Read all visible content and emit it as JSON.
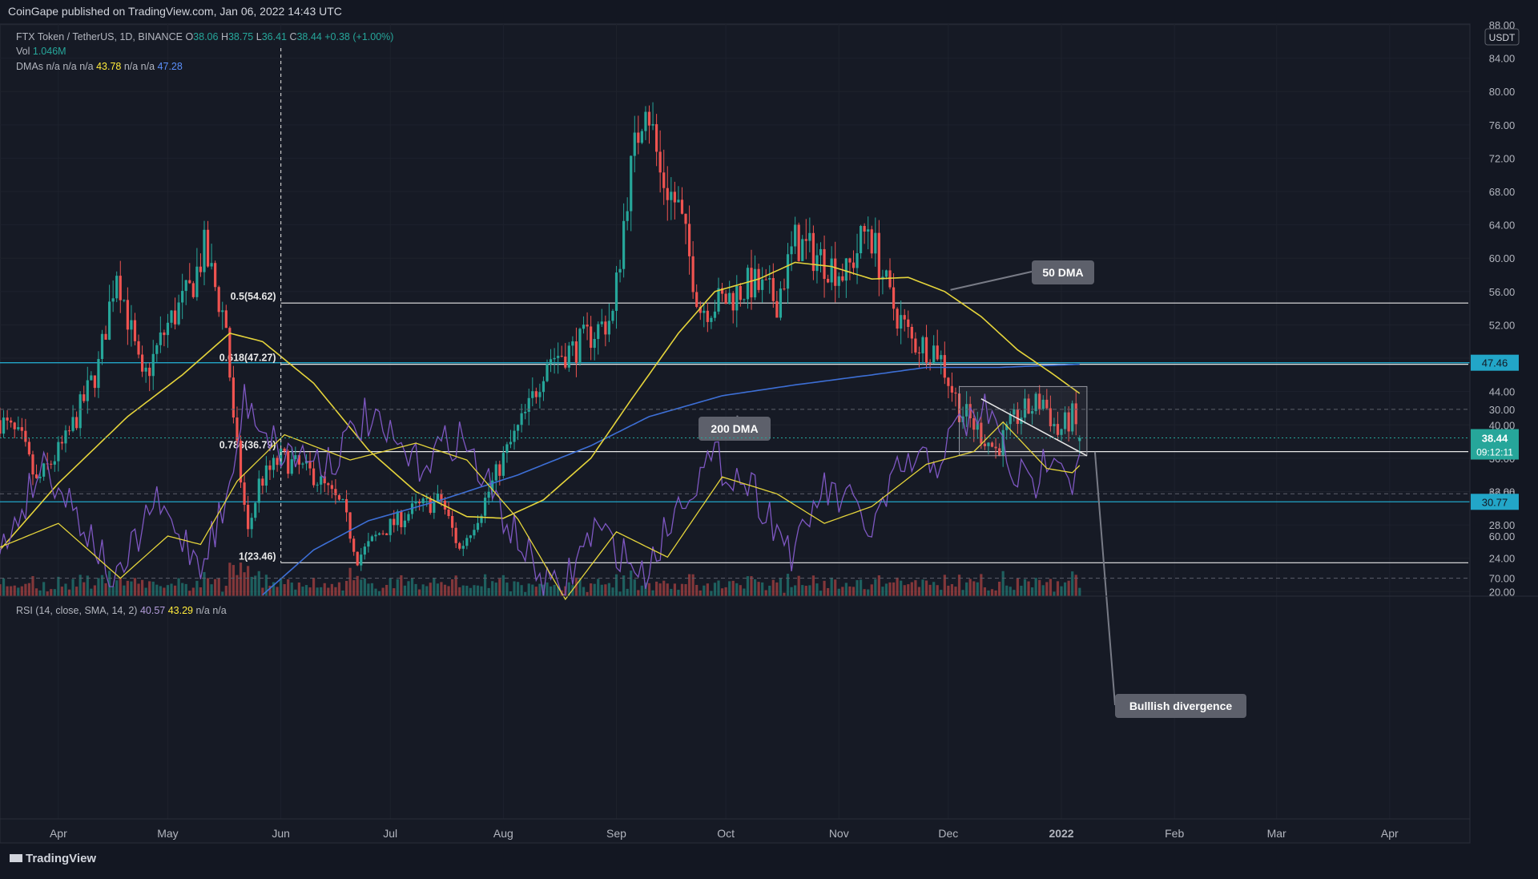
{
  "header": {
    "published": "CoinGape published on TradingView.com, Jan 06, 2022 14:43 UTC",
    "logo_text": "TradingView"
  },
  "legend": {
    "symbol": "FTX Token / TetherUS, 1D, BINANCE",
    "o_label": "O",
    "o": "38.06",
    "h_label": "H",
    "h": "38.75",
    "l_label": "L",
    "l": "36.41",
    "c_label": "C",
    "c": "38.44",
    "change": "+0.38 (+1.00%)",
    "vol_label": "Vol",
    "vol": "1.046M",
    "dma_label": "DMAs n/a n/a n/a",
    "dma1": "43.78",
    "dma_mid": "n/a n/a",
    "dma2": "47.28",
    "rsi_label": "RSI (14, close, SMA, 14, 2)",
    "rsi": "40.57",
    "rsi_ma": "43.29",
    "rsi_rest": "n/a n/a"
  },
  "colors": {
    "bg": "#131722",
    "up": "#26a69a",
    "down": "#ef5350",
    "dma50": "#e5d43b",
    "dma200": "#3d6fd6",
    "rsi": "#7e57c2",
    "rsi_ma": "#e5d43b",
    "accent": "#26a69a",
    "hline": "#22a6c8",
    "grid": "#1e222d"
  },
  "chart_data": [
    {
      "type": "candlestick",
      "currency": "USDT",
      "yticks": [
        20,
        24,
        28,
        32,
        36,
        40,
        44,
        48,
        52,
        56,
        60,
        64,
        68,
        72,
        76,
        80,
        84,
        88
      ],
      "ylim": [
        19.5,
        88
      ],
      "xticks": [
        "Apr",
        "May",
        "Jun",
        "Jul",
        "Aug",
        "Sep",
        "Oct",
        "Nov",
        "Dec",
        "2022",
        "Feb",
        "Mar",
        "Apr"
      ],
      "price_path": [
        [
          "2021-03-15",
          41
        ],
        [
          "2021-03-22",
          38
        ],
        [
          "2021-03-26",
          33
        ],
        [
          "2021-04-03",
          38
        ],
        [
          "2021-04-12",
          47
        ],
        [
          "2021-04-17",
          59
        ],
        [
          "2021-04-24",
          45
        ],
        [
          "2021-05-01",
          52
        ],
        [
          "2021-05-07",
          56
        ],
        [
          "2021-05-11",
          61
        ],
        [
          "2021-05-17",
          52
        ],
        [
          "2021-05-19",
          40
        ],
        [
          "2021-05-23",
          27
        ],
        [
          "2021-05-26",
          33
        ],
        [
          "2021-06-01",
          36
        ],
        [
          "2021-06-10",
          34
        ],
        [
          "2021-06-18",
          30
        ],
        [
          "2021-06-22",
          24
        ],
        [
          "2021-06-28",
          27
        ],
        [
          "2021-07-08",
          30
        ],
        [
          "2021-07-15",
          31
        ],
        [
          "2021-07-20",
          25
        ],
        [
          "2021-07-26",
          30
        ],
        [
          "2021-08-01",
          36
        ],
        [
          "2021-08-08",
          42
        ],
        [
          "2021-08-13",
          48
        ],
        [
          "2021-08-20",
          49
        ],
        [
          "2021-08-31",
          53
        ],
        [
          "2021-09-04",
          68
        ],
        [
          "2021-09-09",
          80
        ],
        [
          "2021-09-13",
          70
        ],
        [
          "2021-09-18",
          66
        ],
        [
          "2021-09-24",
          54
        ],
        [
          "2021-10-01",
          55
        ],
        [
          "2021-10-08",
          57
        ],
        [
          "2021-10-15",
          55
        ],
        [
          "2021-10-20",
          62
        ],
        [
          "2021-10-27",
          60
        ],
        [
          "2021-11-03",
          58
        ],
        [
          "2021-11-09",
          64
        ],
        [
          "2021-11-15",
          55
        ],
        [
          "2021-11-21",
          50
        ],
        [
          "2021-11-28",
          49
        ],
        [
          "2021-12-04",
          42
        ],
        [
          "2021-12-10",
          39
        ],
        [
          "2021-12-14",
          37
        ],
        [
          "2021-12-20",
          41
        ],
        [
          "2021-12-27",
          43
        ],
        [
          "2021-12-31",
          39
        ],
        [
          "2022-01-04",
          41
        ],
        [
          "2022-01-06",
          38.44
        ]
      ],
      "last_close": 38.44,
      "countdown": "09:12:11",
      "price_labels": [
        {
          "value": 47.46,
          "text": "47.46"
        },
        {
          "value": 30.77,
          "text": "30.77"
        }
      ],
      "horizontal_levels": [
        47.46,
        30.77
      ],
      "fib_levels": [
        {
          "label": "0.5(54.62)",
          "value": 54.62
        },
        {
          "label": "0.618(47.27)",
          "value": 47.27
        },
        {
          "label": "0.786(36.79)",
          "value": 36.79
        },
        {
          "label": "1(23.46)",
          "value": 23.46
        }
      ],
      "range_box": {
        "from": "2021-12-04",
        "to": "2022-01-08",
        "top": 44.6,
        "bottom": 36.3
      },
      "dma50": [
        [
          "2021-03-15",
          24.5
        ],
        [
          "2021-04-01",
          33
        ],
        [
          "2021-04-20",
          41
        ],
        [
          "2021-05-05",
          46
        ],
        [
          "2021-05-18",
          51
        ],
        [
          "2021-05-27",
          50
        ],
        [
          "2021-06-10",
          45
        ],
        [
          "2021-06-25",
          37
        ],
        [
          "2021-07-08",
          32
        ],
        [
          "2021-07-22",
          29
        ],
        [
          "2021-08-01",
          28.8
        ],
        [
          "2021-08-12",
          31
        ],
        [
          "2021-08-25",
          36
        ],
        [
          "2021-09-05",
          43
        ],
        [
          "2021-09-18",
          51
        ],
        [
          "2021-09-28",
          56
        ],
        [
          "2021-10-10",
          57.5
        ],
        [
          "2021-10-20",
          59.5
        ],
        [
          "2021-10-30",
          59
        ],
        [
          "2021-11-10",
          57.5
        ],
        [
          "2021-11-20",
          57.7
        ],
        [
          "2021-11-30",
          56
        ],
        [
          "2021-12-10",
          53
        ],
        [
          "2021-12-20",
          49
        ],
        [
          "2021-12-30",
          46
        ],
        [
          "2022-01-06",
          43.78
        ]
      ],
      "dma200": [
        [
          "2021-05-27",
          19.6
        ],
        [
          "2021-06-10",
          25
        ],
        [
          "2021-06-25",
          28.5
        ],
        [
          "2021-07-15",
          31
        ],
        [
          "2021-08-05",
          34
        ],
        [
          "2021-08-25",
          37.5
        ],
        [
          "2021-09-10",
          41
        ],
        [
          "2021-09-30",
          43.5
        ],
        [
          "2021-10-20",
          44.8
        ],
        [
          "2021-11-10",
          46
        ],
        [
          "2021-11-25",
          46.9
        ],
        [
          "2021-12-15",
          46.9
        ],
        [
          "2022-01-06",
          47.28
        ]
      ],
      "annotations": [
        {
          "text": "50 DMA",
          "at": [
            "2021-11-25",
            56.2
          ]
        },
        {
          "text": "200 DMA",
          "at": [
            "2021-10-02",
            44
          ]
        }
      ]
    },
    {
      "type": "line",
      "name": "RSI",
      "yticks": [
        30,
        40,
        50,
        60,
        70
      ],
      "ylim": [
        23,
        75
      ],
      "bands": {
        "upper": 70,
        "middle": 50,
        "lower": 30
      },
      "rsi": [
        [
          "2021-03-15",
          66
        ],
        [
          "2021-03-28",
          42
        ],
        [
          "2021-04-10",
          60
        ],
        [
          "2021-04-17",
          72
        ],
        [
          "2021-04-27",
          52
        ],
        [
          "2021-05-10",
          66
        ],
        [
          "2021-05-18",
          50
        ],
        [
          "2021-05-22",
          27
        ],
        [
          "2021-06-01",
          40
        ],
        [
          "2021-06-15",
          42
        ],
        [
          "2021-06-24",
          32
        ],
        [
          "2021-07-08",
          43
        ],
        [
          "2021-07-20",
          36
        ],
        [
          "2021-08-01",
          55
        ],
        [
          "2021-08-10",
          68
        ],
        [
          "2021-08-16",
          74
        ],
        [
          "2021-08-26",
          58
        ],
        [
          "2021-09-05",
          66
        ],
        [
          "2021-09-08",
          70
        ],
        [
          "2021-09-20",
          49
        ],
        [
          "2021-09-28",
          42
        ],
        [
          "2021-10-08",
          48
        ],
        [
          "2021-10-20",
          65
        ],
        [
          "2021-10-27",
          49
        ],
        [
          "2021-11-05",
          53
        ],
        [
          "2021-11-10",
          59
        ],
        [
          "2021-11-18",
          44
        ],
        [
          "2021-11-28",
          42
        ],
        [
          "2021-12-04",
          34
        ],
        [
          "2021-12-12",
          30
        ],
        [
          "2021-12-18",
          44
        ],
        [
          "2021-12-24",
          49
        ],
        [
          "2021-12-30",
          37
        ],
        [
          "2022-01-04",
          47
        ],
        [
          "2022-01-06",
          40.57
        ]
      ],
      "rsi_ma": [
        [
          "2021-03-15",
          63
        ],
        [
          "2021-04-01",
          57
        ],
        [
          "2021-04-18",
          70
        ],
        [
          "2021-05-01",
          60
        ],
        [
          "2021-05-10",
          62
        ],
        [
          "2021-05-20",
          47
        ],
        [
          "2021-06-02",
          36
        ],
        [
          "2021-06-20",
          42
        ],
        [
          "2021-07-08",
          38
        ],
        [
          "2021-07-22",
          42
        ],
        [
          "2021-08-05",
          56
        ],
        [
          "2021-08-18",
          75
        ],
        [
          "2021-09-01",
          59
        ],
        [
          "2021-09-15",
          65
        ],
        [
          "2021-09-30",
          46
        ],
        [
          "2021-10-15",
          50
        ],
        [
          "2021-10-28",
          57
        ],
        [
          "2021-11-10",
          53
        ],
        [
          "2021-11-25",
          43
        ],
        [
          "2021-12-08",
          40
        ],
        [
          "2021-12-16",
          33
        ],
        [
          "2021-12-28",
          44
        ],
        [
          "2022-01-04",
          45
        ],
        [
          "2022-01-06",
          43.29
        ]
      ],
      "divergence_line": [
        [
          "2021-12-10",
          27.5
        ],
        [
          "2022-01-08",
          41
        ]
      ],
      "annotation": "Bulllish divergence"
    }
  ]
}
